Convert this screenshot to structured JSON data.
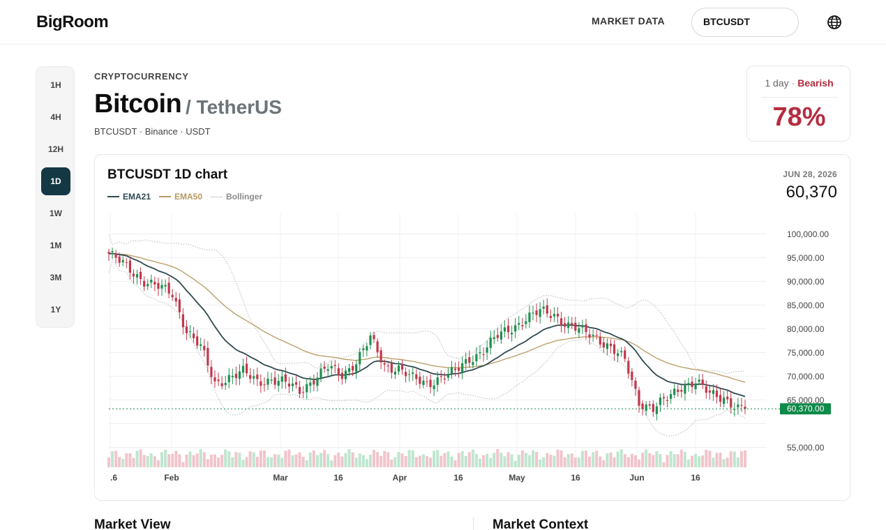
{
  "brand": {
    "logo": "BigRoom"
  },
  "nav": {
    "market_data": "MARKET DATA"
  },
  "search": {
    "value": "BTCUSDT"
  },
  "sidebar": {
    "timeframes": [
      "1H",
      "4H",
      "12H",
      "1D",
      "1W",
      "1M",
      "3M",
      "1Y"
    ],
    "active": "1D"
  },
  "header": {
    "category": "CRYPTOCURRENCY",
    "title": "Bitcoin",
    "quote": "/ TetherUS",
    "meta": "BTCUSDT · Binance · USDT"
  },
  "sentiment": {
    "period": "1 day",
    "separator": "·",
    "label": "Bearish",
    "percent": "78%"
  },
  "chart": {
    "title": "BTCUSDT 1D chart",
    "date": "JUN 28, 2026",
    "price": "60,370",
    "legend": {
      "ema21": "EMA21",
      "ema50": "EMA50",
      "bollinger": "Bollinger"
    },
    "colors": {
      "up": "#1f8f4e",
      "down": "#c0384b",
      "ema21": "#2f4950",
      "ema50": "#b79a60",
      "bollinger": "#b5b5b5",
      "price_tag": "#0e8a4a"
    }
  },
  "chart_data": {
    "type": "candlestick",
    "y_ticks": [
      "100,000.00",
      "95,000.00",
      "90,000.00",
      "85,000.00",
      "80,000.00",
      "75,000.00",
      "70,000.00",
      "65,000.00",
      "55,000.00"
    ],
    "x_ticks": [
      ".6",
      "Feb",
      "Mar",
      "16",
      "Apr",
      "16",
      "May",
      "16",
      "Jun",
      "16"
    ],
    "current_price_label": "60,370.00",
    "current_price": 60370,
    "ylim": [
      52000,
      104000
    ],
    "close_path": [
      [
        0,
        95000
      ],
      [
        5,
        92000
      ],
      [
        10,
        89000
      ],
      [
        14,
        87500
      ],
      [
        18,
        86000
      ],
      [
        22,
        78000
      ],
      [
        26,
        74000
      ],
      [
        30,
        66000
      ],
      [
        34,
        67500
      ],
      [
        38,
        68500
      ],
      [
        42,
        66500
      ],
      [
        46,
        67000
      ],
      [
        50,
        66000
      ],
      [
        54,
        64500
      ],
      [
        58,
        67000
      ],
      [
        62,
        69500
      ],
      [
        66,
        68000
      ],
      [
        70,
        71000
      ],
      [
        74,
        76000
      ],
      [
        78,
        70000
      ],
      [
        82,
        69500
      ],
      [
        86,
        67000
      ],
      [
        90,
        66000
      ],
      [
        94,
        67500
      ],
      [
        98,
        68500
      ],
      [
        102,
        71500
      ],
      [
        106,
        73500
      ],
      [
        110,
        76500
      ],
      [
        114,
        78500
      ],
      [
        118,
        80500
      ],
      [
        122,
        82000
      ],
      [
        126,
        81500
      ],
      [
        130,
        79000
      ],
      [
        134,
        77500
      ],
      [
        138,
        76500
      ],
      [
        142,
        74000
      ],
      [
        146,
        71000
      ],
      [
        150,
        62000
      ],
      [
        154,
        60500
      ],
      [
        158,
        62500
      ],
      [
        162,
        65500
      ],
      [
        166,
        66500
      ],
      [
        170,
        63500
      ],
      [
        174,
        63000
      ],
      [
        178,
        60500
      ],
      [
        180,
        60370
      ]
    ],
    "volume_scale": "relative"
  },
  "sections": {
    "market_view": "Market View",
    "market_context": "Market Context"
  }
}
